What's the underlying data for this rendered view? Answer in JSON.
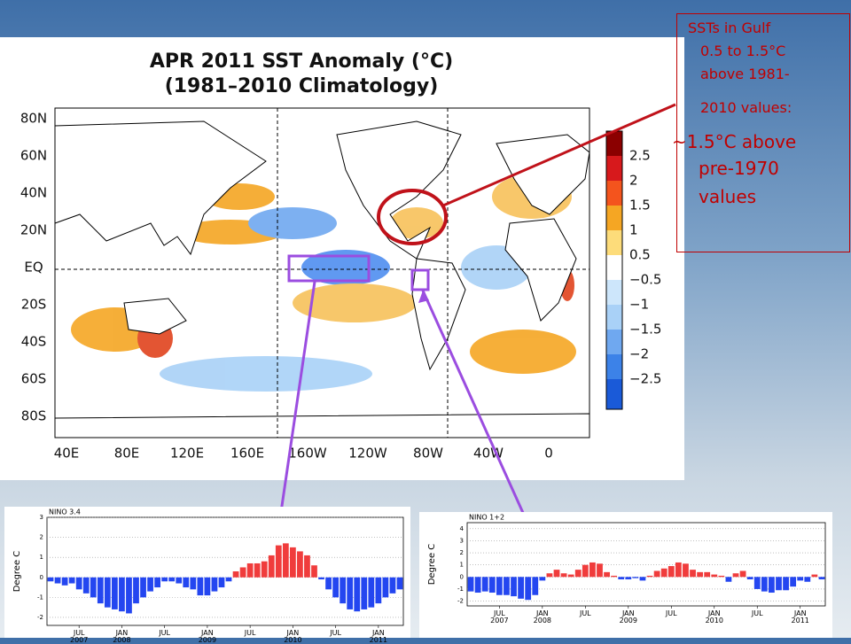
{
  "map": {
    "title": "APR 2011 SST Anomaly (°C)",
    "subtitle": "(1981–2010 Climatology)",
    "lat_labels": [
      "80N",
      "60N",
      "40N",
      "20N",
      "EQ",
      "20S",
      "40S",
      "60S",
      "80S"
    ],
    "lon_labels": [
      "40E",
      "80E",
      "120E",
      "160E",
      "160W",
      "120W",
      "80W",
      "40W",
      "0"
    ],
    "colorbar_labels": [
      "2.5",
      "2",
      "1.5",
      "1",
      "0.5",
      "−0.5",
      "−1",
      "−1.5",
      "−2",
      "−2.5"
    ]
  },
  "callout": {
    "lines": [
      "SSTs in Gulf",
      "0.5 to 1.5°C",
      "above 1981-",
      "2010 values:",
      "~1.5°C above",
      "pre-1970",
      "values"
    ]
  },
  "chart_data": [
    {
      "type": "bar",
      "title": "NINO 3.4",
      "y_label": "Degree C",
      "categories": [
        null,
        null,
        null,
        null,
        "JUL\n2007",
        null,
        null,
        null,
        null,
        null,
        "JAN\n2008",
        null,
        null,
        null,
        null,
        null,
        "JUL",
        null,
        null,
        null,
        null,
        null,
        "JAN\n2009",
        null,
        null,
        null,
        null,
        null,
        "JUL",
        null,
        null,
        null,
        null,
        null,
        "JAN\n2010",
        null,
        null,
        null,
        null,
        null,
        "JUL",
        null,
        null,
        null,
        null,
        null,
        "JAN\n2011",
        null,
        null,
        null
      ],
      "values": [
        -0.2,
        -0.3,
        -0.4,
        -0.3,
        -0.6,
        -0.8,
        -1.0,
        -1.3,
        -1.5,
        -1.6,
        -1.7,
        -1.8,
        -1.3,
        -1.0,
        -0.7,
        -0.5,
        -0.2,
        -0.2,
        -0.3,
        -0.5,
        -0.6,
        -0.9,
        -0.9,
        -0.7,
        -0.5,
        -0.2,
        0.3,
        0.5,
        0.7,
        0.7,
        0.8,
        1.1,
        1.6,
        1.7,
        1.5,
        1.3,
        1.1,
        0.6,
        -0.1,
        -0.6,
        -1.0,
        -1.3,
        -1.6,
        -1.7,
        -1.6,
        -1.5,
        -1.3,
        -1.0,
        -0.8,
        -0.6
      ],
      "color_positive": "#f03c3c",
      "color_negative": "#2446f0",
      "ylim": [
        -2.4,
        3
      ],
      "yticks": [
        -2,
        -1,
        0,
        1,
        2,
        3
      ],
      "grid": true
    },
    {
      "type": "bar",
      "title": "NINO 1+2",
      "y_label": "Degree C",
      "categories": [
        null,
        null,
        null,
        null,
        "JUL\n2007",
        null,
        null,
        null,
        null,
        null,
        "JAN\n2008",
        null,
        null,
        null,
        null,
        null,
        "JUL",
        null,
        null,
        null,
        null,
        null,
        "JAN\n2009",
        null,
        null,
        null,
        null,
        null,
        "JUL",
        null,
        null,
        null,
        null,
        null,
        "JAN\n2010",
        null,
        null,
        null,
        null,
        null,
        "JUL",
        null,
        null,
        null,
        null,
        null,
        "JAN\n2011",
        null,
        null,
        null
      ],
      "values": [
        -1.2,
        -1.3,
        -1.2,
        -1.3,
        -1.5,
        -1.5,
        -1.6,
        -1.8,
        -1.9,
        -1.5,
        -0.3,
        0.3,
        0.6,
        0.3,
        0.2,
        0.6,
        1.0,
        1.2,
        1.1,
        0.4,
        0.1,
        -0.2,
        -0.2,
        -0.1,
        -0.3,
        0.1,
        0.5,
        0.7,
        0.9,
        1.2,
        1.1,
        0.6,
        0.4,
        0.4,
        0.2,
        0.1,
        -0.4,
        0.3,
        0.5,
        -0.2,
        -1.0,
        -1.2,
        -1.3,
        -1.1,
        -1.1,
        -0.8,
        -0.3,
        -0.4,
        0.2,
        -0.2
      ],
      "color_positive": "#f03c3c",
      "color_negative": "#2446f0",
      "ylim": [
        -2.4,
        4.5
      ],
      "yticks": [
        -2,
        -1,
        0,
        1,
        2,
        3,
        4
      ],
      "grid": true
    }
  ]
}
